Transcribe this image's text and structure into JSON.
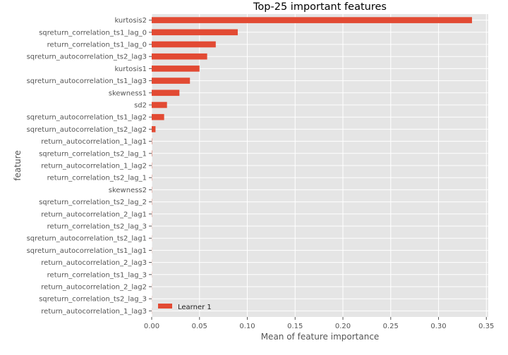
{
  "chart_data": {
    "type": "bar",
    "orientation": "horizontal",
    "title": "Top-25 important features",
    "xlabel": "Mean of feature importance",
    "ylabel": "feature",
    "xlim": [
      0,
      0.352
    ],
    "xticks": [
      0.0,
      0.05,
      0.1,
      0.15,
      0.2,
      0.25,
      0.3,
      0.35
    ],
    "xtick_labels": [
      "0.00",
      "0.05",
      "0.10",
      "0.15",
      "0.20",
      "0.25",
      "0.30",
      "0.35"
    ],
    "grid": true,
    "legend_position": "lower-left",
    "bar_color": "#E24A33",
    "categories": [
      "kurtosis2",
      "sqreturn_correlation_ts1_lag_0",
      "return_correlation_ts1_lag_0",
      "sqreturn_autocorrelation_ts2_lag3",
      "kurtosis1",
      "sqreturn_autocorrelation_ts1_lag3",
      "skewness1",
      "sd2",
      "sqreturn_autocorrelation_ts1_lag2",
      "sqreturn_autocorrelation_ts2_lag2",
      "return_autocorrelation_1_lag1",
      "sqreturn_correlation_ts2_lag_1",
      "return_autocorrelation_1_lag2",
      "return_correlation_ts2_lag_1",
      "skewness2",
      "sqreturn_correlation_ts2_lag_2",
      "return_autocorrelation_2_lag1",
      "return_correlation_ts2_lag_3",
      "sqreturn_autocorrelation_ts2_lag1",
      "sqreturn_autocorrelation_ts1_lag1",
      "return_autocorrelation_2_lag3",
      "return_correlation_ts1_lag_3",
      "return_autocorrelation_2_lag2",
      "sqreturn_correlation_ts2_lag_3",
      "return_autocorrelation_1_lag3"
    ],
    "series": [
      {
        "name": "Learner 1",
        "values": [
          0.335,
          0.09,
          0.067,
          0.058,
          0.05,
          0.04,
          0.029,
          0.016,
          0.013,
          0.004,
          0.0003,
          0.0003,
          0.0002,
          0.0002,
          0.0002,
          0.0002,
          0.0002,
          0.0001,
          0.0001,
          0.0001,
          0.0001,
          0.0001,
          0.0001,
          0.0001,
          0.0001
        ]
      }
    ]
  }
}
